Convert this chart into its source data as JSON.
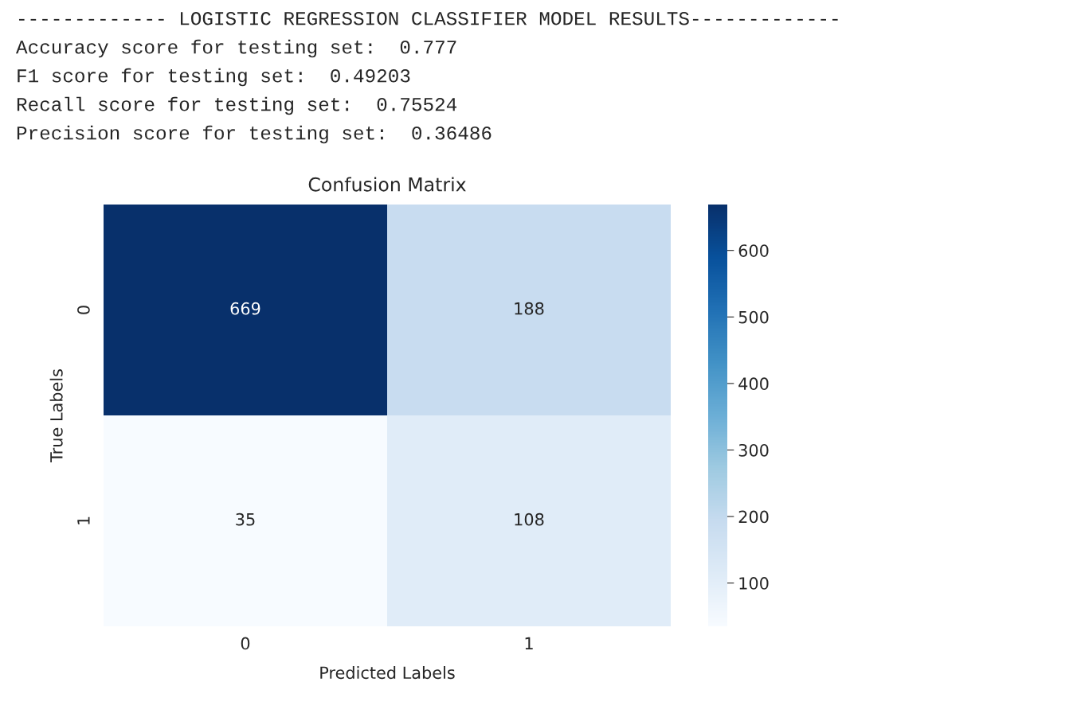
{
  "chart_data": {
    "type": "heatmap",
    "title": "Confusion Matrix",
    "xlabel": "Predicted Labels",
    "ylabel": "True Labels",
    "annotations": [
      "------------- LOGISTIC REGRESSION CLASSIFIER MODEL RESULTS-------------",
      "Accuracy score for testing set:  0.777",
      "F1 score for testing set:  0.49203",
      "Recall score for testing set:  0.75524",
      "Precision score for testing set:  0.36486"
    ],
    "categories": [
      "0",
      "1"
    ],
    "y_categories": [
      "0",
      "1"
    ],
    "cells": [
      [
        669,
        188
      ],
      [
        35,
        108
      ]
    ],
    "data_labels": true,
    "clim": [
      35,
      669
    ],
    "cticks": [
      100,
      200,
      300,
      400,
      500,
      600
    ]
  }
}
